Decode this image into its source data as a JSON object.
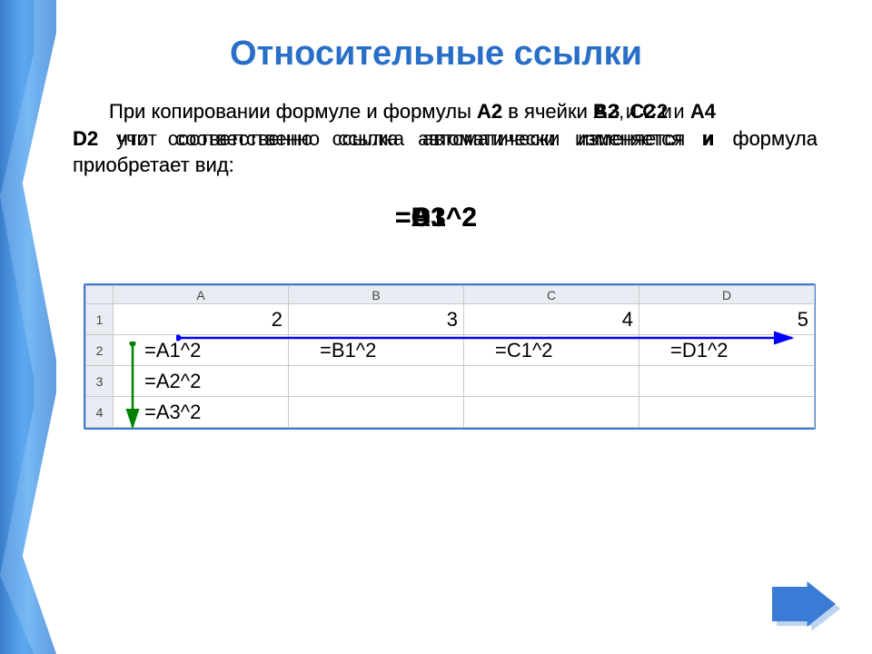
{
  "title": "Относительные ссылки",
  "paragraph_layers": {
    "layer1_html": "<span class='indent'></span>При копировании формуле и формулы <b>А2</b> в ячейки <b>АЗ</b> и <b>С2</b> и <b>А4</b><br><b>D2</b> учит соответственно ссылка автоматически изменяется и формула приобретает вид:",
    "layer2_html": "<span class='indent'></span>При копировании формуле и формулы <b>А2</b> в ячейки <b>В2</b>, <b>С2</b> и<br><b>D2</b> что соответственно ссылка автоматически изменяется и формула приобретает вид:"
  },
  "big_overlap": [
    "=А3^2",
    "=В1^2",
    "=D1^2",
    "=С1^2"
  ],
  "sheet": {
    "columns": [
      "A",
      "B",
      "C",
      "D"
    ],
    "row_labels": [
      "1",
      "2",
      "3",
      "4"
    ],
    "row1": [
      "2",
      "3",
      "4",
      "5"
    ],
    "row2": [
      "=A1^2",
      "=B1^2",
      "=C1^2",
      "=D1^2"
    ],
    "row3": [
      "=A2^2",
      "",
      "",
      ""
    ],
    "row4": [
      "=A3^2",
      "",
      "",
      ""
    ]
  },
  "colors": {
    "title": "#2a6fc7",
    "frame_border": "#3a7bd5",
    "header_bg": "#e9edf3",
    "blue_arrow": "#0000ff",
    "green_arrow": "#008000",
    "nav_fill": "#3a7bd5"
  }
}
